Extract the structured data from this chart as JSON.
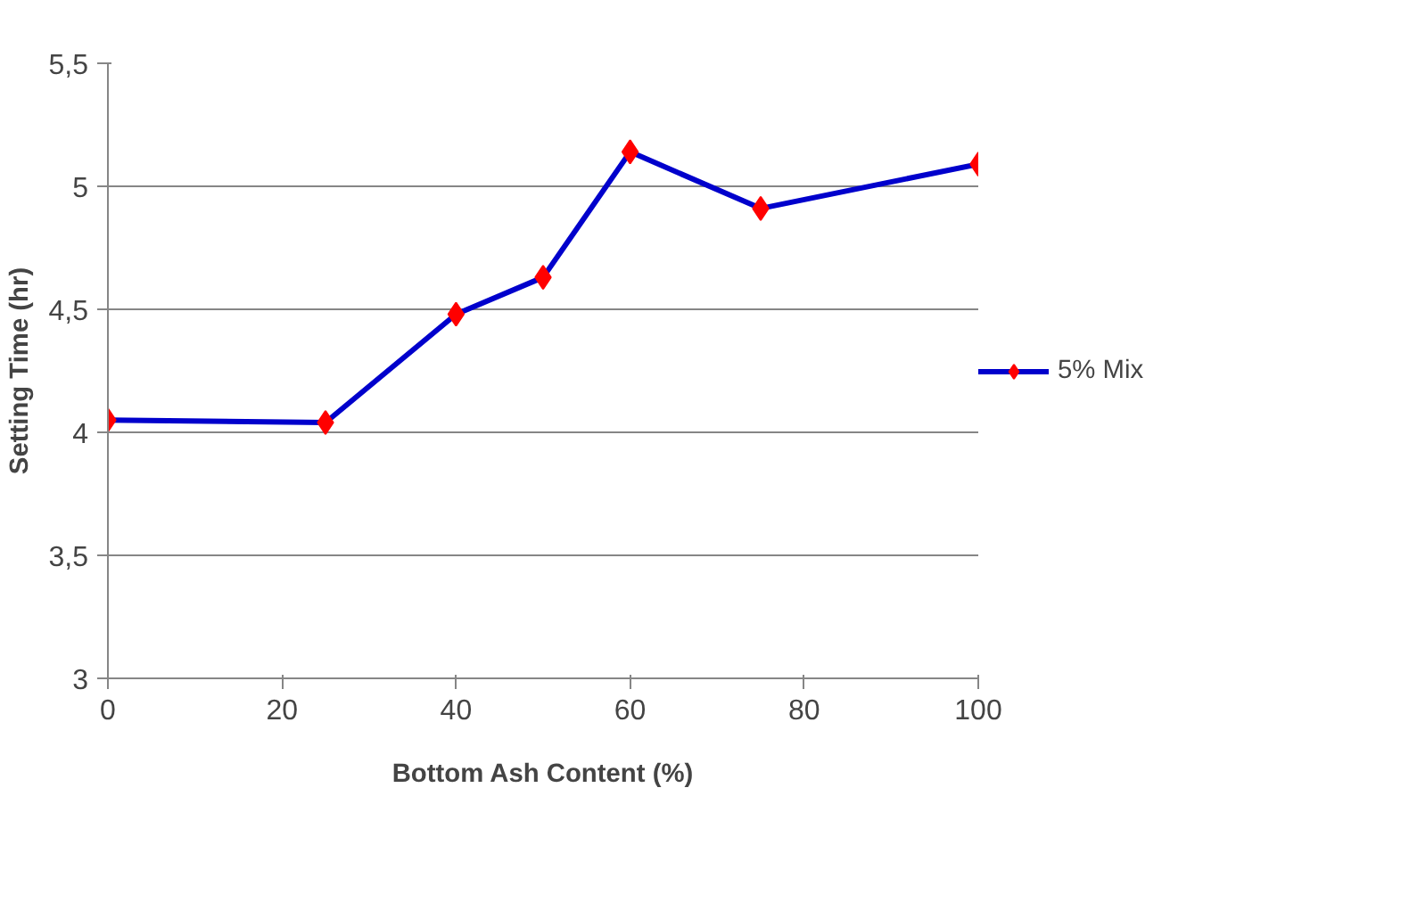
{
  "chart_data": {
    "type": "line",
    "xlabel": "Bottom Ash Content (%)",
    "ylabel": "Setting Time (hr)",
    "x": [
      0,
      25,
      40,
      50,
      60,
      75,
      100
    ],
    "series": [
      {
        "name": "5% Mix",
        "color": "#0000cc",
        "colors": [
          "#ff0000",
          "#ff0000",
          "#ff0000",
          "#ff0000",
          "#ff0000",
          "#ff0000",
          "#ff0000"
        ],
        "values": [
          4.05,
          4.04,
          4.48,
          4.63,
          5.14,
          4.91,
          5.09
        ]
      }
    ],
    "xlim": [
      0,
      100
    ],
    "xticks": [
      0,
      20,
      40,
      60,
      80,
      100
    ],
    "ylim": [
      3,
      5.5
    ],
    "yticks": [
      3,
      {
        "value": 3.5,
        "label": "3,5"
      },
      4,
      {
        "value": 4.5,
        "label": "4,5"
      },
      5,
      {
        "value": 5.5,
        "label": "5,5"
      }
    ],
    "grid": "y",
    "legend": "right",
    "marker": "diamond",
    "line_style": "solid"
  }
}
